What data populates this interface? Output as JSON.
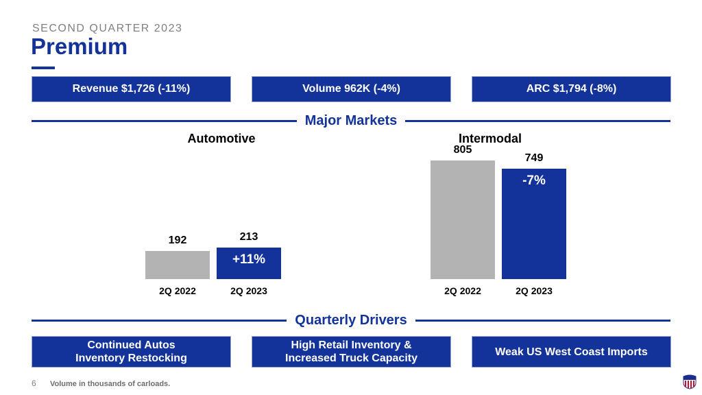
{
  "header": {
    "subtitle": "SECOND QUARTER 2023",
    "title": "Premium"
  },
  "kpis": [
    {
      "label": "Revenue $1,726 (-11%)"
    },
    {
      "label": "Volume 962K (-4%)"
    },
    {
      "label": "ARC $1,794 (-8%)"
    }
  ],
  "sections": {
    "markets": "Major Markets",
    "drivers": "Quarterly Drivers"
  },
  "colors": {
    "brand_blue": "#13339b",
    "prior_year_gray": "#b3b3b3"
  },
  "chart_data": [
    {
      "type": "bar",
      "title": "Automotive",
      "categories": [
        "2Q 2022",
        "2Q 2023"
      ],
      "values": [
        192,
        213
      ],
      "value_labels": [
        "192",
        "213"
      ],
      "annotations": [
        "",
        "+11%"
      ],
      "colors": [
        "#b3b3b3",
        "#13339b"
      ],
      "xlabel": "",
      "ylabel": "Volume (thousands of carloads)",
      "ylim": [
        0,
        805
      ],
      "grid": false
    },
    {
      "type": "bar",
      "title": "Intermodal",
      "categories": [
        "2Q 2022",
        "2Q 2023"
      ],
      "values": [
        805,
        749
      ],
      "value_labels": [
        "805",
        "749"
      ],
      "annotations": [
        "",
        "-7%"
      ],
      "colors": [
        "#b3b3b3",
        "#13339b"
      ],
      "xlabel": "",
      "ylabel": "Volume (thousands of carloads)",
      "ylim": [
        0,
        805
      ],
      "grid": false
    }
  ],
  "drivers": [
    {
      "label": "Continued Autos\nInventory Restocking"
    },
    {
      "label": "High Retail Inventory &\nIncreased Truck Capacity"
    },
    {
      "label": "Weak US West Coast Imports"
    }
  ],
  "footer": {
    "page_number": "6",
    "footnote": "Volume in thousands of carloads.",
    "logo_icon": "union-pacific-shield-icon"
  }
}
